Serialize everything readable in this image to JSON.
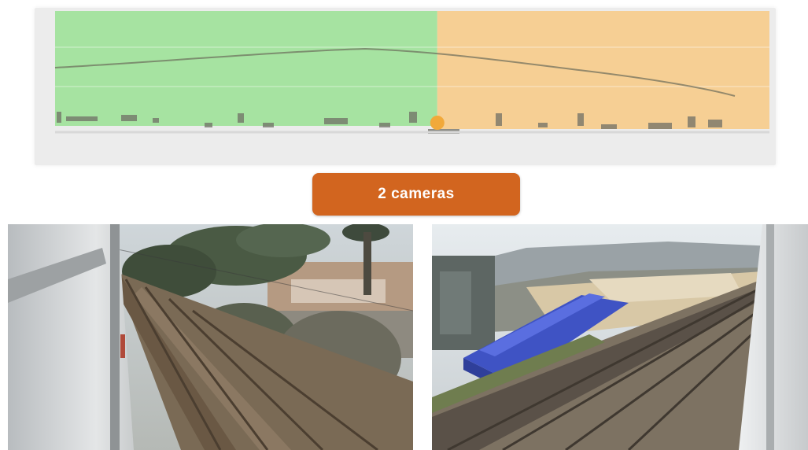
{
  "action_button": {
    "label": "2 cameras"
  },
  "colors": {
    "past_zone": "#a6e3a1",
    "future_zone": "#f6cf94",
    "panel_bg": "#ececec",
    "button_bg": "#d2651f",
    "cursor_marker": "#f1a93a",
    "trend_line": "#6b6b5a"
  },
  "timeline": {
    "cursor_position_fraction": 0.535,
    "zones": [
      "past-zone",
      "future-zone"
    ]
  },
  "cameras": [
    {
      "id": "camera-left",
      "overlay_text": ""
    },
    {
      "id": "camera-right",
      "overlay_text": ""
    }
  ]
}
